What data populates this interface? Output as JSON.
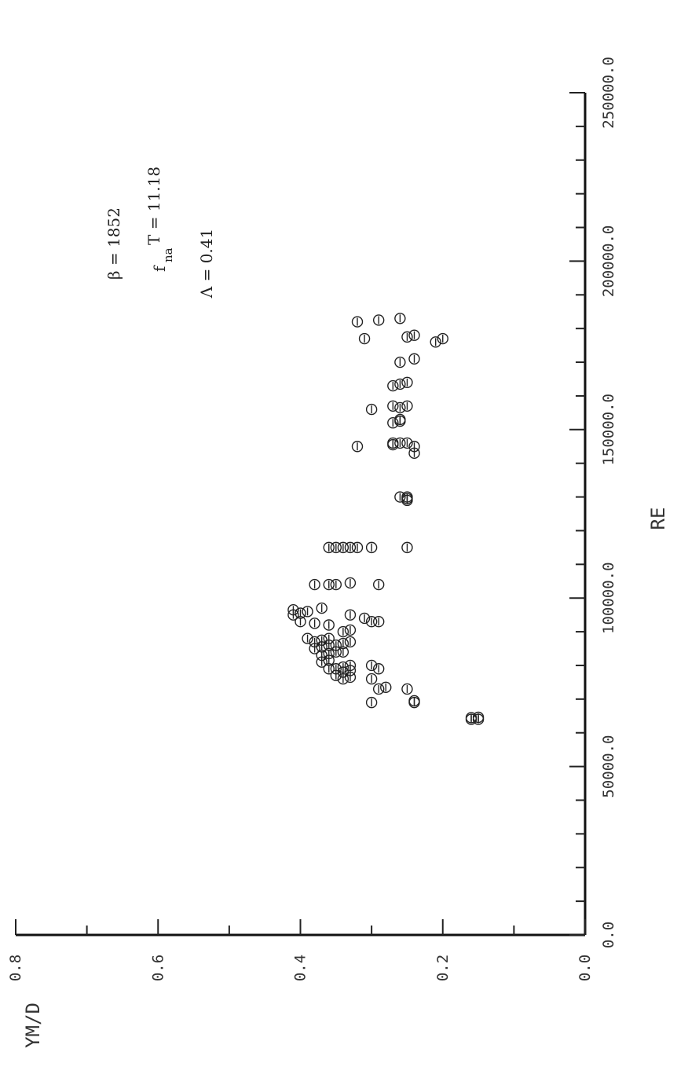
{
  "chart_data": {
    "type": "scatter",
    "title": "",
    "xlabel": "RE",
    "ylabel": "YM/D",
    "xlim": [
      0,
      250000
    ],
    "ylim": [
      0.0,
      0.8
    ],
    "x_ticks": [
      "0.0",
      "50000.0",
      "100000.0",
      "150000.0",
      "200000.0",
      "250000.0"
    ],
    "y_ticks": [
      "0.0",
      "0.2",
      "0.4",
      "0.6",
      "0.8"
    ],
    "grid": false,
    "marker": "circle-with-bar",
    "orientation": "rotated-90",
    "annotations": {
      "beta": "β = 1852",
      "fT_main": "f",
      "fT_sub": "na",
      "fT_rest": "T = 11.18",
      "lambda": "Λ = 0.41"
    },
    "points": [
      [
        64000,
        0.16
      ],
      [
        64500,
        0.16
      ],
      [
        64000,
        0.15
      ],
      [
        64600,
        0.15
      ],
      [
        69000,
        0.3
      ],
      [
        69000,
        0.24
      ],
      [
        69500,
        0.24
      ],
      [
        73000,
        0.29
      ],
      [
        73500,
        0.28
      ],
      [
        73000,
        0.25
      ],
      [
        76000,
        0.34
      ],
      [
        76500,
        0.33
      ],
      [
        77000,
        0.35
      ],
      [
        76000,
        0.3
      ],
      [
        78000,
        0.34
      ],
      [
        78500,
        0.33
      ],
      [
        79000,
        0.36
      ],
      [
        79000,
        0.35
      ],
      [
        79500,
        0.34
      ],
      [
        80000,
        0.33
      ],
      [
        80000,
        0.3
      ],
      [
        79000,
        0.29
      ],
      [
        81000,
        0.37
      ],
      [
        81500,
        0.36
      ],
      [
        83000,
        0.37
      ],
      [
        83500,
        0.36
      ],
      [
        84000,
        0.35
      ],
      [
        84000,
        0.34
      ],
      [
        85000,
        0.38
      ],
      [
        85500,
        0.37
      ],
      [
        86000,
        0.36
      ],
      [
        86000,
        0.35
      ],
      [
        86500,
        0.34
      ],
      [
        87000,
        0.33
      ],
      [
        87000,
        0.38
      ],
      [
        87500,
        0.37
      ],
      [
        88000,
        0.36
      ],
      [
        88000,
        0.39
      ],
      [
        90000,
        0.34
      ],
      [
        90500,
        0.33
      ],
      [
        92000,
        0.36
      ],
      [
        92500,
        0.38
      ],
      [
        93000,
        0.3
      ],
      [
        93000,
        0.29
      ],
      [
        95000,
        0.41
      ],
      [
        95500,
        0.4
      ],
      [
        96000,
        0.39
      ],
      [
        96500,
        0.41
      ],
      [
        97000,
        0.37
      ],
      [
        94000,
        0.31
      ],
      [
        95000,
        0.33
      ],
      [
        93000,
        0.4
      ],
      [
        104000,
        0.38
      ],
      [
        104000,
        0.36
      ],
      [
        104000,
        0.35
      ],
      [
        104500,
        0.33
      ],
      [
        104000,
        0.29
      ],
      [
        115000,
        0.36
      ],
      [
        115000,
        0.35
      ],
      [
        115000,
        0.34
      ],
      [
        115000,
        0.33
      ],
      [
        115000,
        0.32
      ],
      [
        115000,
        0.3
      ],
      [
        115000,
        0.25
      ],
      [
        129000,
        0.25
      ],
      [
        129500,
        0.25
      ],
      [
        130000,
        0.25
      ],
      [
        130000,
        0.26
      ],
      [
        145000,
        0.32
      ],
      [
        145500,
        0.27
      ],
      [
        146000,
        0.27
      ],
      [
        146000,
        0.26
      ],
      [
        146000,
        0.25
      ],
      [
        145000,
        0.24
      ],
      [
        143000,
        0.24
      ],
      [
        152000,
        0.27
      ],
      [
        152500,
        0.26
      ],
      [
        153000,
        0.26
      ],
      [
        156000,
        0.3
      ],
      [
        157000,
        0.27
      ],
      [
        156500,
        0.26
      ],
      [
        157000,
        0.25
      ],
      [
        163000,
        0.27
      ],
      [
        163500,
        0.26
      ],
      [
        164000,
        0.25
      ],
      [
        170000,
        0.26
      ],
      [
        171000,
        0.24
      ],
      [
        177000,
        0.31
      ],
      [
        177500,
        0.25
      ],
      [
        178000,
        0.24
      ],
      [
        176000,
        0.21
      ],
      [
        177000,
        0.2
      ],
      [
        182000,
        0.32
      ],
      [
        182500,
        0.29
      ],
      [
        183000,
        0.26
      ]
    ]
  }
}
